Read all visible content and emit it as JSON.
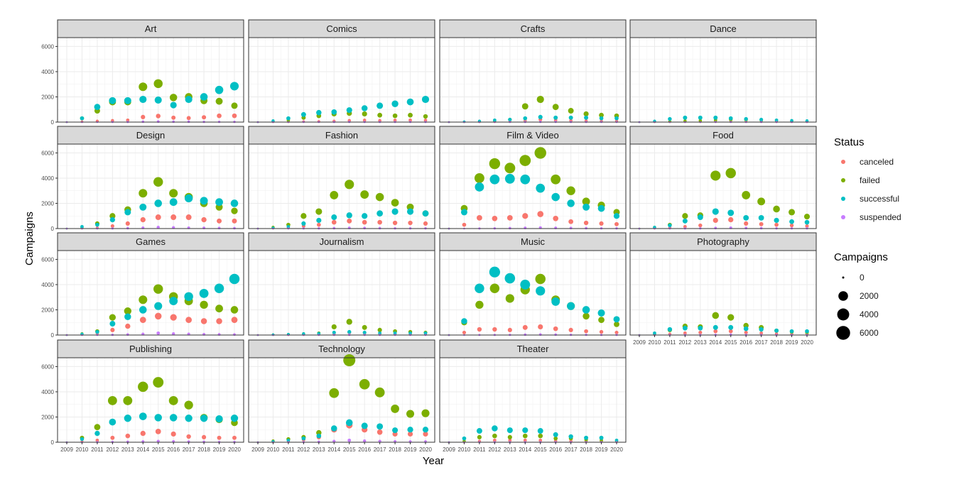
{
  "chart_data": {
    "type": "scatter",
    "facet_by": "category",
    "x": [
      2009,
      2010,
      2011,
      2012,
      2013,
      2014,
      2015,
      2016,
      2017,
      2018,
      2019,
      2020
    ],
    "x_tick_labels": [
      "2009",
      "2010",
      "2011",
      "2012",
      "2013",
      "2014",
      "2015",
      "2016",
      "2017",
      "2018",
      "2019",
      "2020"
    ],
    "xlabel": "Year",
    "ylabel": "Campaigns",
    "ylim": [
      0,
      6700
    ],
    "y_ticks": [
      0,
      2000,
      4000,
      6000
    ],
    "y_tick_labels": [
      "0",
      "2000",
      "4000",
      "6000"
    ],
    "grid": true,
    "status_order": [
      "canceled",
      "failed",
      "successful",
      "suspended"
    ],
    "colors": {
      "canceled": "#F8766D",
      "failed": "#7CAE00",
      "successful": "#00BFC4",
      "suspended": "#C77CFF"
    },
    "legend": {
      "position": "right",
      "color_title": "Status",
      "size_title": "Campaigns",
      "size_values": [
        0,
        2000,
        4000,
        6000
      ],
      "size_labels": [
        "0",
        "2000",
        "4000",
        "6000"
      ]
    },
    "size_mapping": "point size scales with Campaigns",
    "panels": [
      {
        "category": "Art",
        "series": {
          "canceled": [
            0,
            30,
            80,
            120,
            150,
            400,
            480,
            350,
            320,
            380,
            500,
            500
          ],
          "failed": [
            0,
            300,
            900,
            1600,
            1600,
            2800,
            3050,
            1950,
            2000,
            1700,
            1650,
            1300
          ],
          "successful": [
            0,
            300,
            1200,
            1700,
            1700,
            1800,
            1750,
            1350,
            1800,
            2000,
            2550,
            2850
          ],
          "suspended": [
            0,
            0,
            0,
            5,
            10,
            30,
            40,
            30,
            30,
            20,
            20,
            20
          ]
        }
      },
      {
        "category": "Comics",
        "series": {
          "canceled": [
            0,
            10,
            20,
            40,
            50,
            80,
            120,
            140,
            120,
            140,
            150,
            140
          ],
          "failed": [
            0,
            50,
            150,
            350,
            500,
            650,
            700,
            650,
            550,
            500,
            550,
            450
          ],
          "successful": [
            0,
            100,
            300,
            600,
            750,
            800,
            950,
            1100,
            1300,
            1450,
            1600,
            1800
          ],
          "suspended": [
            0,
            0,
            0,
            5,
            5,
            10,
            15,
            10,
            10,
            10,
            10,
            10
          ]
        }
      },
      {
        "category": "Crafts",
        "series": {
          "canceled": [
            0,
            5,
            10,
            20,
            40,
            120,
            200,
            150,
            120,
            100,
            90,
            90
          ],
          "failed": [
            0,
            20,
            50,
            100,
            200,
            1250,
            1800,
            1200,
            900,
            650,
            550,
            500
          ],
          "successful": [
            0,
            30,
            80,
            150,
            200,
            300,
            400,
            350,
            350,
            350,
            300,
            300
          ],
          "suspended": [
            0,
            0,
            0,
            0,
            5,
            10,
            20,
            20,
            10,
            10,
            5,
            5
          ]
        }
      },
      {
        "category": "Dance",
        "series": {
          "canceled": [
            0,
            5,
            10,
            20,
            20,
            30,
            40,
            30,
            30,
            20,
            20,
            20
          ],
          "failed": [
            0,
            20,
            60,
            100,
            120,
            150,
            200,
            180,
            150,
            120,
            100,
            80
          ],
          "successful": [
            0,
            80,
            250,
            350,
            350,
            350,
            300,
            250,
            200,
            150,
            120,
            100
          ],
          "suspended": [
            0,
            0,
            0,
            0,
            0,
            5,
            5,
            5,
            5,
            5,
            0,
            0
          ]
        }
      },
      {
        "category": "Design",
        "series": {
          "canceled": [
            0,
            20,
            60,
            200,
            400,
            700,
            900,
            900,
            900,
            700,
            600,
            600
          ],
          "failed": [
            0,
            80,
            400,
            1000,
            1500,
            2800,
            3700,
            2800,
            2500,
            2000,
            1700,
            1400
          ],
          "successful": [
            0,
            150,
            300,
            700,
            1300,
            1700,
            2000,
            2100,
            2400,
            2200,
            2100,
            2000
          ],
          "suspended": [
            0,
            0,
            5,
            10,
            30,
            60,
            100,
            80,
            60,
            50,
            40,
            30
          ]
        }
      },
      {
        "category": "Fashion",
        "series": {
          "canceled": [
            0,
            20,
            80,
            200,
            300,
            500,
            600,
            500,
            500,
            450,
            450,
            400
          ],
          "failed": [
            0,
            100,
            300,
            1000,
            1350,
            2650,
            3500,
            2700,
            2500,
            2050,
            1700,
            1200
          ],
          "successful": [
            0,
            50,
            150,
            400,
            650,
            900,
            1050,
            1000,
            1200,
            1350,
            1350,
            1200
          ],
          "suspended": [
            0,
            0,
            5,
            10,
            20,
            30,
            50,
            40,
            30,
            20,
            20,
            20
          ]
        }
      },
      {
        "category": "Film & Video",
        "series": {
          "canceled": [
            0,
            300,
            850,
            800,
            850,
            1000,
            1150,
            800,
            550,
            450,
            400,
            350
          ],
          "failed": [
            0,
            1600,
            4000,
            5150,
            4800,
            5400,
            6000,
            3900,
            3000,
            2150,
            1850,
            1300
          ],
          "successful": [
            0,
            1300,
            3300,
            3900,
            3950,
            3900,
            3200,
            2500,
            2000,
            1700,
            1600,
            1000
          ],
          "suspended": [
            0,
            0,
            10,
            20,
            30,
            50,
            70,
            50,
            40,
            30,
            20,
            20
          ]
        }
      },
      {
        "category": "Food",
        "series": {
          "canceled": [
            0,
            20,
            80,
            150,
            250,
            650,
            700,
            400,
            350,
            300,
            250,
            200
          ],
          "failed": [
            0,
            100,
            300,
            1000,
            1050,
            4200,
            4400,
            2650,
            2150,
            1550,
            1300,
            950
          ],
          "successful": [
            0,
            100,
            250,
            600,
            900,
            1350,
            1250,
            850,
            850,
            650,
            550,
            500
          ],
          "suspended": [
            0,
            0,
            5,
            10,
            20,
            40,
            60,
            40,
            30,
            20,
            20,
            20
          ]
        }
      },
      {
        "category": "Games",
        "series": {
          "canceled": [
            0,
            30,
            150,
            400,
            700,
            1200,
            1500,
            1400,
            1200,
            1100,
            1100,
            1200
          ],
          "failed": [
            0,
            100,
            300,
            1400,
            1900,
            2800,
            3650,
            3050,
            2700,
            2400,
            2100,
            2000
          ],
          "successful": [
            0,
            80,
            250,
            900,
            1450,
            2000,
            2300,
            2700,
            3050,
            3300,
            3700,
            4450
          ],
          "suspended": [
            0,
            0,
            5,
            20,
            40,
            80,
            150,
            100,
            80,
            60,
            50,
            40
          ]
        }
      },
      {
        "category": "Journalism",
        "series": {
          "canceled": [
            0,
            5,
            10,
            20,
            40,
            100,
            200,
            150,
            100,
            80,
            80,
            60
          ],
          "failed": [
            0,
            30,
            60,
            100,
            150,
            650,
            1050,
            600,
            400,
            300,
            250,
            200
          ],
          "successful": [
            0,
            30,
            60,
            100,
            120,
            200,
            250,
            200,
            150,
            150,
            150,
            150
          ],
          "suspended": [
            0,
            0,
            0,
            0,
            5,
            10,
            20,
            10,
            10,
            5,
            5,
            5
          ]
        }
      },
      {
        "category": "Music",
        "series": {
          "canceled": [
            0,
            200,
            450,
            450,
            400,
            600,
            650,
            500,
            400,
            300,
            250,
            200
          ],
          "failed": [
            0,
            1000,
            2400,
            3700,
            2900,
            3600,
            4450,
            2800,
            2300,
            1500,
            1200,
            850
          ],
          "successful": [
            0,
            1100,
            3700,
            5000,
            4500,
            4000,
            3500,
            2650,
            2300,
            2000,
            1750,
            1250
          ],
          "suspended": [
            0,
            0,
            5,
            10,
            15,
            30,
            40,
            30,
            20,
            20,
            10,
            10
          ]
        }
      },
      {
        "category": "Photography",
        "series": {
          "canceled": [
            0,
            20,
            80,
            150,
            200,
            300,
            300,
            200,
            150,
            100,
            100,
            100
          ],
          "failed": [
            0,
            100,
            400,
            700,
            650,
            1550,
            1400,
            750,
            600,
            350,
            250,
            200
          ],
          "successful": [
            0,
            150,
            450,
            550,
            550,
            600,
            600,
            500,
            450,
            350,
            300,
            300
          ],
          "suspended": [
            0,
            0,
            5,
            10,
            10,
            20,
            30,
            20,
            10,
            10,
            10,
            10
          ]
        }
      },
      {
        "category": "Publishing",
        "series": {
          "canceled": [
            0,
            50,
            150,
            350,
            500,
            700,
            850,
            650,
            450,
            400,
            350,
            350
          ],
          "failed": [
            0,
            350,
            1200,
            3300,
            3300,
            4400,
            4750,
            3300,
            2950,
            1950,
            1800,
            1550
          ],
          "successful": [
            0,
            250,
            700,
            1600,
            1900,
            2050,
            1950,
            1950,
            1900,
            1900,
            1850,
            1900
          ],
          "suspended": [
            0,
            0,
            10,
            20,
            30,
            50,
            80,
            60,
            40,
            30,
            20,
            20
          ]
        }
      },
      {
        "category": "Technology",
        "series": {
          "canceled": [
            0,
            20,
            80,
            200,
            400,
            1000,
            1350,
            1000,
            800,
            650,
            650,
            650
          ],
          "failed": [
            0,
            100,
            250,
            400,
            750,
            3900,
            6500,
            4600,
            3950,
            2650,
            2250,
            2300
          ],
          "successful": [
            0,
            60,
            150,
            300,
            500,
            1100,
            1550,
            1300,
            1250,
            950,
            1000,
            1000
          ],
          "suspended": [
            0,
            0,
            5,
            10,
            30,
            80,
            150,
            100,
            80,
            60,
            50,
            50
          ]
        }
      },
      {
        "category": "Theater",
        "series": {
          "canceled": [
            0,
            20,
            80,
            150,
            150,
            150,
            150,
            120,
            100,
            80,
            80,
            60
          ],
          "failed": [
            0,
            100,
            400,
            500,
            400,
            500,
            500,
            300,
            300,
            200,
            150,
            100
          ],
          "successful": [
            0,
            300,
            900,
            1100,
            950,
            950,
            900,
            600,
            450,
            350,
            350,
            150
          ],
          "suspended": [
            0,
            0,
            5,
            10,
            10,
            10,
            10,
            10,
            5,
            5,
            5,
            5
          ]
        }
      }
    ]
  }
}
